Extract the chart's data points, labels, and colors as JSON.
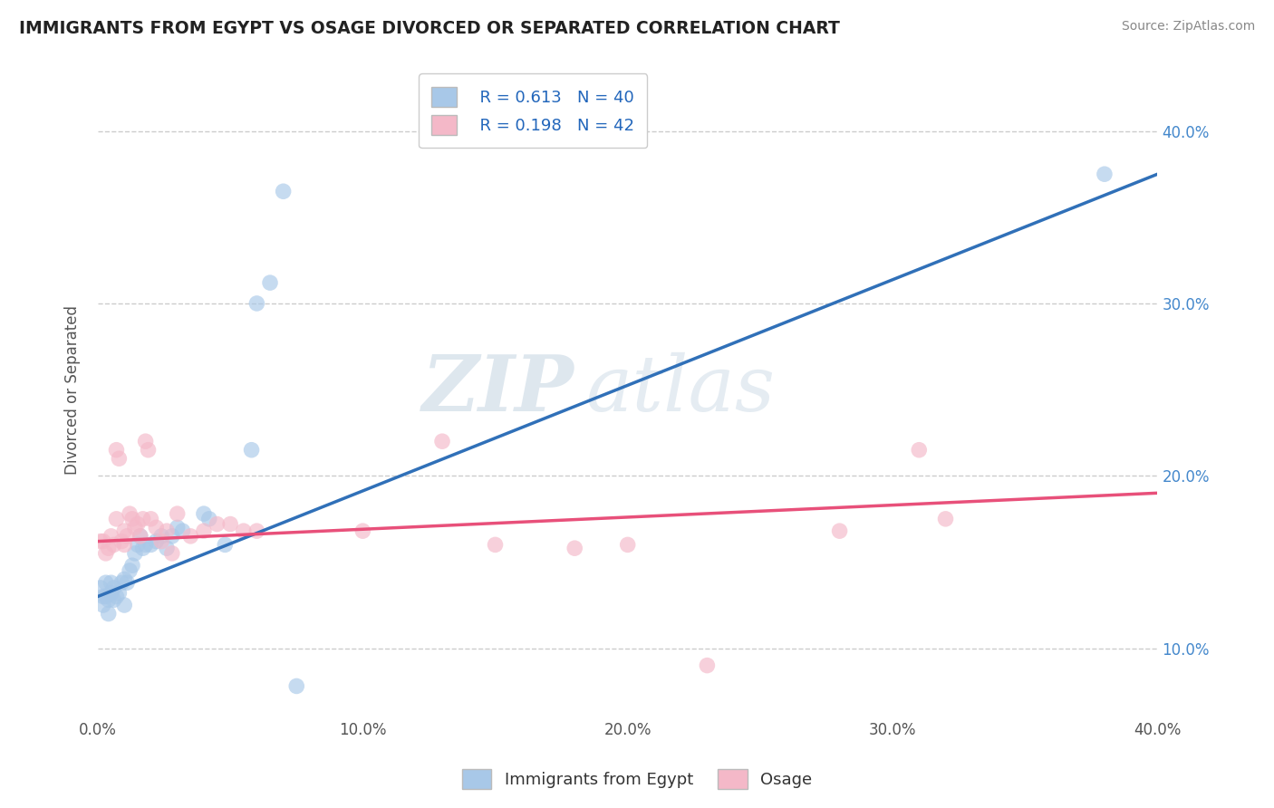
{
  "title": "IMMIGRANTS FROM EGYPT VS OSAGE DIVORCED OR SEPARATED CORRELATION CHART",
  "source_text": "Source: ZipAtlas.com",
  "ylabel_label": "Divorced or Separated",
  "legend_label1": "Immigrants from Egypt",
  "legend_label2": "Osage",
  "legend_r1": "R = 0.613",
  "legend_n1": "N = 40",
  "legend_r2": "R = 0.198",
  "legend_n2": "N = 42",
  "watermark_zip": "ZIP",
  "watermark_atlas": "atlas",
  "blue_color": "#a8c8e8",
  "pink_color": "#f4b8c8",
  "blue_line_color": "#3070b8",
  "pink_line_color": "#e8507a",
  "xlim": [
    0.0,
    0.4
  ],
  "ylim": [
    0.06,
    0.44
  ],
  "blue_scatter_x": [
    0.001,
    0.002,
    0.002,
    0.003,
    0.003,
    0.004,
    0.004,
    0.005,
    0.005,
    0.006,
    0.006,
    0.007,
    0.008,
    0.009,
    0.01,
    0.01,
    0.011,
    0.012,
    0.013,
    0.014,
    0.015,
    0.016,
    0.017,
    0.018,
    0.02,
    0.022,
    0.024,
    0.026,
    0.028,
    0.03,
    0.032,
    0.04,
    0.042,
    0.048,
    0.058,
    0.06,
    0.065,
    0.07,
    0.075,
    0.38
  ],
  "blue_scatter_y": [
    0.135,
    0.13,
    0.125,
    0.138,
    0.13,
    0.128,
    0.12,
    0.138,
    0.132,
    0.135,
    0.128,
    0.13,
    0.132,
    0.138,
    0.14,
    0.125,
    0.138,
    0.145,
    0.148,
    0.155,
    0.16,
    0.165,
    0.158,
    0.16,
    0.16,
    0.162,
    0.165,
    0.158,
    0.165,
    0.17,
    0.168,
    0.178,
    0.175,
    0.16,
    0.215,
    0.3,
    0.312,
    0.365,
    0.078,
    0.375
  ],
  "pink_scatter_x": [
    0.001,
    0.002,
    0.003,
    0.004,
    0.005,
    0.006,
    0.007,
    0.007,
    0.008,
    0.009,
    0.01,
    0.01,
    0.011,
    0.012,
    0.013,
    0.014,
    0.015,
    0.016,
    0.017,
    0.018,
    0.019,
    0.02,
    0.022,
    0.024,
    0.026,
    0.028,
    0.03,
    0.035,
    0.04,
    0.045,
    0.05,
    0.055,
    0.06,
    0.1,
    0.13,
    0.15,
    0.18,
    0.2,
    0.23,
    0.28,
    0.31,
    0.32
  ],
  "pink_scatter_y": [
    0.162,
    0.162,
    0.155,
    0.158,
    0.165,
    0.16,
    0.175,
    0.215,
    0.21,
    0.162,
    0.168,
    0.16,
    0.165,
    0.178,
    0.175,
    0.17,
    0.172,
    0.165,
    0.175,
    0.22,
    0.215,
    0.175,
    0.17,
    0.162,
    0.168,
    0.155,
    0.178,
    0.165,
    0.168,
    0.172,
    0.172,
    0.168,
    0.168,
    0.168,
    0.22,
    0.16,
    0.158,
    0.16,
    0.09,
    0.168,
    0.215,
    0.175
  ],
  "blue_line_x": [
    0.0,
    0.4
  ],
  "blue_line_y": [
    0.13,
    0.375
  ],
  "pink_line_x": [
    0.0,
    0.4
  ],
  "pink_line_y": [
    0.162,
    0.19
  ]
}
